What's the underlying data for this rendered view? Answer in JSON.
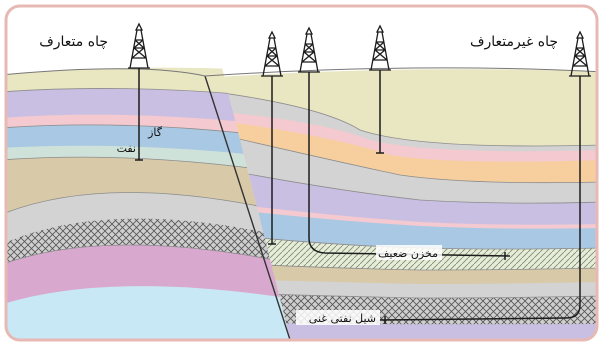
{
  "labels": {
    "conventional_well": "چاه متعارف",
    "unconventional_well": "چاه غیرمتعارف",
    "gas": "گاز",
    "oil": "نفت",
    "tight_reservoir": "مخزن ضعیف",
    "oil_shale": "شیل نفتی غنی"
  },
  "colors": {
    "sky": "#ffffff",
    "frame": "#e7b9b4",
    "surface": "#e9e6c2",
    "gas_zone": "#f4c9cf",
    "oil_zone": "#cfe2d9",
    "lavender": "#c9bfe3",
    "blue": "#a8c8e3",
    "tan": "#d8caa8",
    "grey": "#d3d3d3",
    "pink_purple": "#d8a8cf",
    "light_blue": "#c9e8f5",
    "orange": "#f7cf9e",
    "derrick": "#1c1c1c"
  }
}
